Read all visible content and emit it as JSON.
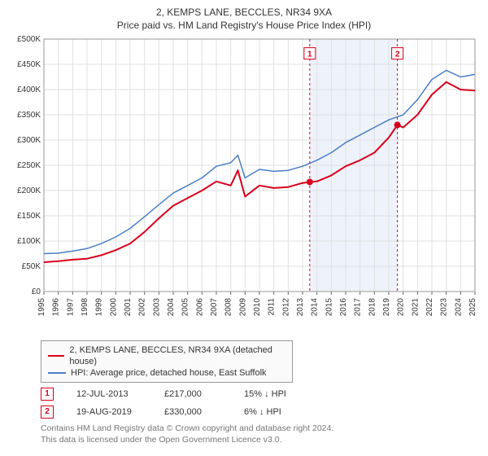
{
  "title": "2, KEMPS LANE, BECCLES, NR34 9XA",
  "subtitle": "Price paid vs. HM Land Registry's House Price Index (HPI)",
  "chart": {
    "type": "line",
    "background_color": "#ffffff",
    "grid_color": "#e0e0e0",
    "axis_color": "#666666",
    "tick_font_size": 10,
    "y_axis": {
      "min": 0,
      "max": 500000,
      "ticks": [
        0,
        50000,
        100000,
        150000,
        200000,
        250000,
        300000,
        350000,
        400000,
        450000,
        500000
      ],
      "tick_labels": [
        "£0",
        "£50K",
        "£100K",
        "£150K",
        "£200K",
        "£250K",
        "£300K",
        "£350K",
        "£400K",
        "£450K",
        "£500K"
      ]
    },
    "x_axis": {
      "min": 1995,
      "max": 2025,
      "ticks": [
        1995,
        1996,
        1997,
        1998,
        1999,
        2000,
        2001,
        2002,
        2003,
        2004,
        2005,
        2006,
        2007,
        2008,
        2009,
        2010,
        2011,
        2012,
        2013,
        2014,
        2015,
        2016,
        2017,
        2018,
        2019,
        2020,
        2021,
        2022,
        2023,
        2024,
        2025
      ]
    },
    "shaded_region": {
      "x_start": 2013.5,
      "x_end": 2019.6,
      "color": "#eef2fb"
    },
    "series": [
      {
        "id": "property",
        "color": "#d9001b",
        "width": 2,
        "points": [
          [
            1995,
            58000
          ],
          [
            1996,
            60000
          ],
          [
            1997,
            63000
          ],
          [
            1998,
            65000
          ],
          [
            1999,
            72000
          ],
          [
            2000,
            82000
          ],
          [
            2001,
            95000
          ],
          [
            2002,
            118000
          ],
          [
            2003,
            145000
          ],
          [
            2004,
            170000
          ],
          [
            2005,
            185000
          ],
          [
            2006,
            200000
          ],
          [
            2007,
            218000
          ],
          [
            2008,
            210000
          ],
          [
            2008.5,
            240000
          ],
          [
            2009,
            188000
          ],
          [
            2010,
            210000
          ],
          [
            2011,
            205000
          ],
          [
            2012,
            207000
          ],
          [
            2013,
            215000
          ],
          [
            2013.5,
            217000
          ],
          [
            2014,
            218000
          ],
          [
            2015,
            230000
          ],
          [
            2016,
            248000
          ],
          [
            2017,
            260000
          ],
          [
            2018,
            275000
          ],
          [
            2019,
            305000
          ],
          [
            2019.6,
            330000
          ],
          [
            2020,
            325000
          ],
          [
            2021,
            350000
          ],
          [
            2022,
            390000
          ],
          [
            2023,
            415000
          ],
          [
            2024,
            400000
          ],
          [
            2025,
            398000
          ]
        ]
      },
      {
        "id": "hpi",
        "color": "#4a7ec9",
        "width": 1.5,
        "points": [
          [
            1995,
            75000
          ],
          [
            1996,
            76000
          ],
          [
            1997,
            80000
          ],
          [
            1998,
            85000
          ],
          [
            1999,
            95000
          ],
          [
            2000,
            108000
          ],
          [
            2001,
            125000
          ],
          [
            2002,
            148000
          ],
          [
            2003,
            172000
          ],
          [
            2004,
            195000
          ],
          [
            2005,
            210000
          ],
          [
            2006,
            225000
          ],
          [
            2007,
            248000
          ],
          [
            2008,
            255000
          ],
          [
            2008.5,
            270000
          ],
          [
            2009,
            225000
          ],
          [
            2010,
            242000
          ],
          [
            2011,
            238000
          ],
          [
            2012,
            240000
          ],
          [
            2013,
            248000
          ],
          [
            2014,
            260000
          ],
          [
            2015,
            275000
          ],
          [
            2016,
            295000
          ],
          [
            2017,
            310000
          ],
          [
            2018,
            325000
          ],
          [
            2019,
            340000
          ],
          [
            2020,
            350000
          ],
          [
            2021,
            380000
          ],
          [
            2022,
            420000
          ],
          [
            2023,
            438000
          ],
          [
            2024,
            425000
          ],
          [
            2025,
            430000
          ]
        ]
      }
    ],
    "event_markers": [
      {
        "n": "1",
        "x": 2013.5,
        "y": 217000,
        "badge_y": 470000,
        "color": "#d9001b"
      },
      {
        "n": "2",
        "x": 2019.6,
        "y": 330000,
        "badge_y": 470000,
        "color": "#d9001b"
      }
    ]
  },
  "legend": {
    "entries": [
      {
        "color": "#d9001b",
        "label": "2, KEMPS LANE, BECCLES, NR34 9XA (detached house)"
      },
      {
        "color": "#4a7ec9",
        "label": "HPI: Average price, detached house, East Suffolk"
      }
    ]
  },
  "sales": [
    {
      "n": "1",
      "color": "#d9001b",
      "date": "12-JUL-2013",
      "price": "£217,000",
      "diff": "15% ↓ HPI"
    },
    {
      "n": "2",
      "color": "#d9001b",
      "date": "19-AUG-2019",
      "price": "£330,000",
      "diff": "6% ↓ HPI"
    }
  ],
  "footer": {
    "line1": "Contains HM Land Registry data © Crown copyright and database right 2024.",
    "line2": "This data is licensed under the Open Government Licence v3.0."
  }
}
